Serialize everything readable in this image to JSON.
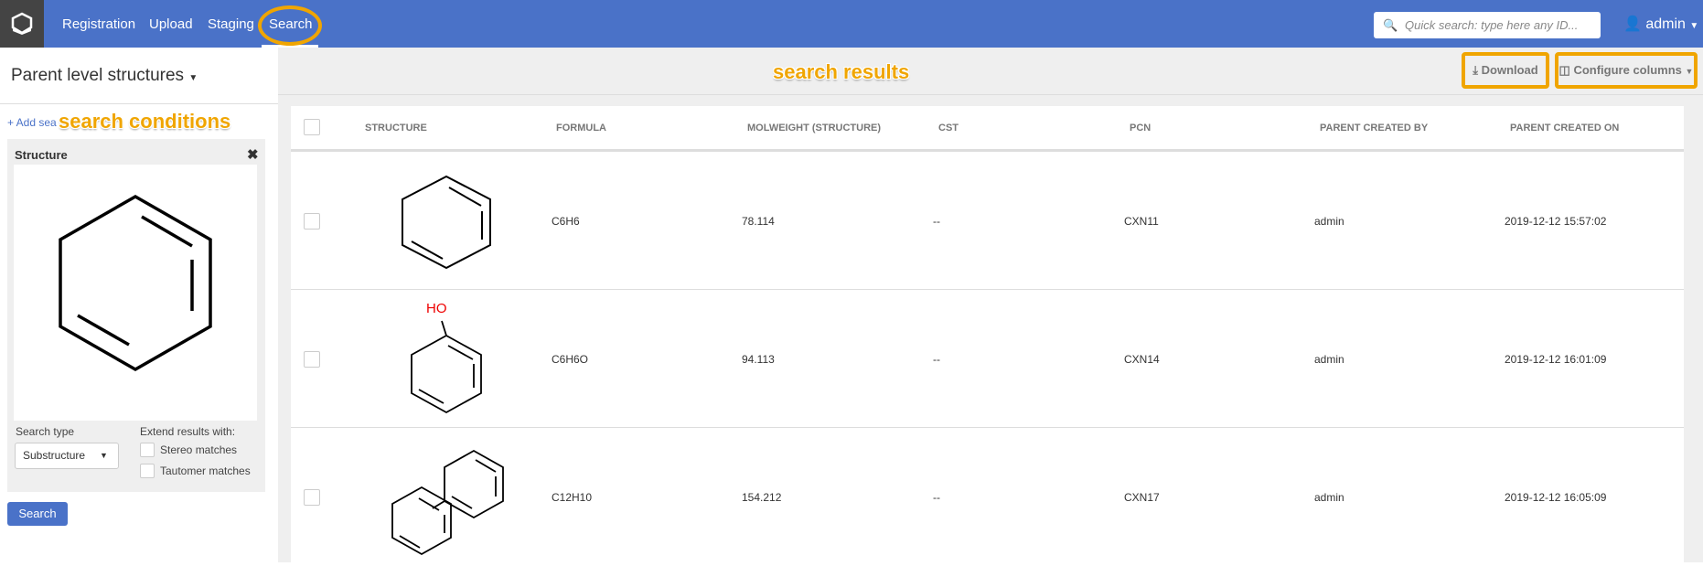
{
  "nav": {
    "items": [
      "Registration",
      "Upload",
      "Staging",
      "Search"
    ],
    "active": "Search",
    "quick_search_placeholder": "Quick search: type here any ID...",
    "user": "admin"
  },
  "sidebar": {
    "title": "Parent level structures",
    "add_condition": "+ Add sea",
    "condition": {
      "title": "Structure",
      "search_type_label": "Search type",
      "search_type_value": "Substructure",
      "extend_label": "Extend results with:",
      "options": [
        "Stereo matches",
        "Tautomer matches"
      ]
    },
    "search_button": "Search"
  },
  "toolbar": {
    "download": "Download",
    "configure_columns": "Configure columns"
  },
  "annotations": {
    "search_conditions": "search conditions",
    "search_results": "search results",
    "highlight_color": "#f0a500"
  },
  "table": {
    "columns": [
      "STRUCTURE",
      "FORMULA",
      "MOLWEIGHT (STRUCTURE)",
      "CST",
      "PCN",
      "PARENT CREATED BY",
      "PARENT CREATED ON"
    ],
    "rows": [
      {
        "structure": "benzene",
        "formula": "C6H6",
        "molweight": "78.114",
        "cst": "--",
        "pcn": "CXN11",
        "created_by": "admin",
        "created_on": "2019-12-12 15:57:02"
      },
      {
        "structure": "phenol",
        "structure_label": "HO",
        "formula": "C6H6O",
        "molweight": "94.113",
        "cst": "--",
        "pcn": "CXN14",
        "created_by": "admin",
        "created_on": "2019-12-12 16:01:09"
      },
      {
        "structure": "biphenyl",
        "formula": "C12H10",
        "molweight": "154.212",
        "cst": "--",
        "pcn": "CXN17",
        "created_by": "admin",
        "created_on": "2019-12-12 16:05:09"
      }
    ]
  },
  "colors": {
    "nav": "#4a72c8",
    "accent": "#4a72c8"
  }
}
